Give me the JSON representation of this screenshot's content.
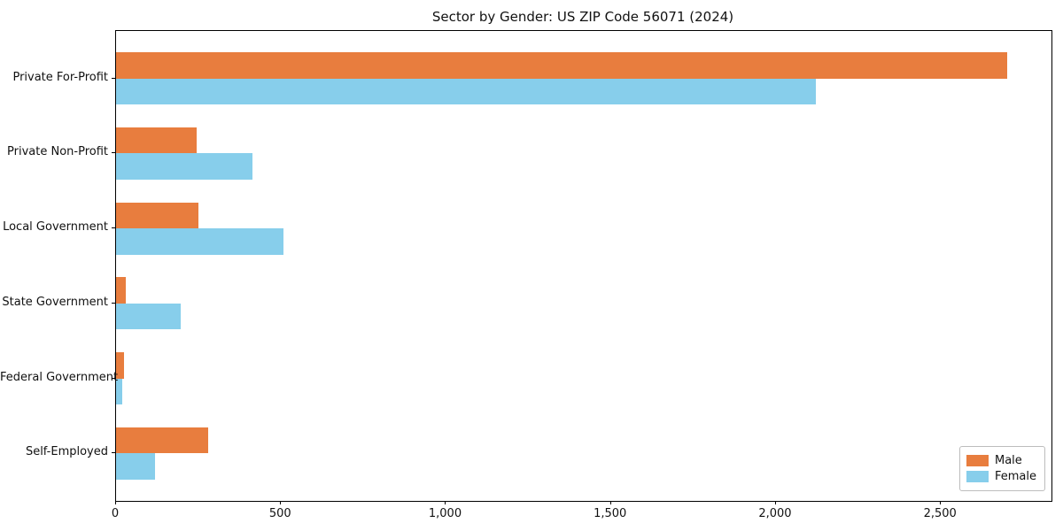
{
  "chart_data": {
    "type": "bar",
    "orientation": "horizontal",
    "title": "Sector by Gender: US ZIP Code 56071 (2024)",
    "categories": [
      "Private For-Profit",
      "Private Non-Profit",
      "Local Government",
      "State Government",
      "Federal Government",
      "Self-Employed"
    ],
    "series": [
      {
        "name": "Male",
        "color": "#e87d3e",
        "values": [
          2700,
          245,
          250,
          30,
          25,
          280
        ]
      },
      {
        "name": "Female",
        "color": "#87ceeb",
        "values": [
          2120,
          413,
          507,
          195,
          19,
          119
        ]
      }
    ],
    "xlabel": "",
    "ylabel": "",
    "xlim": [
      0,
      2835
    ],
    "xticks": [
      0,
      500,
      1000,
      1500,
      2000,
      2500
    ],
    "xtick_labels": [
      "0",
      "500",
      "1,000",
      "1,500",
      "2,000",
      "2,500"
    ],
    "grid": false,
    "legend_position": "lower right",
    "background_color": "#ffffff",
    "spine_color": "#000000"
  }
}
